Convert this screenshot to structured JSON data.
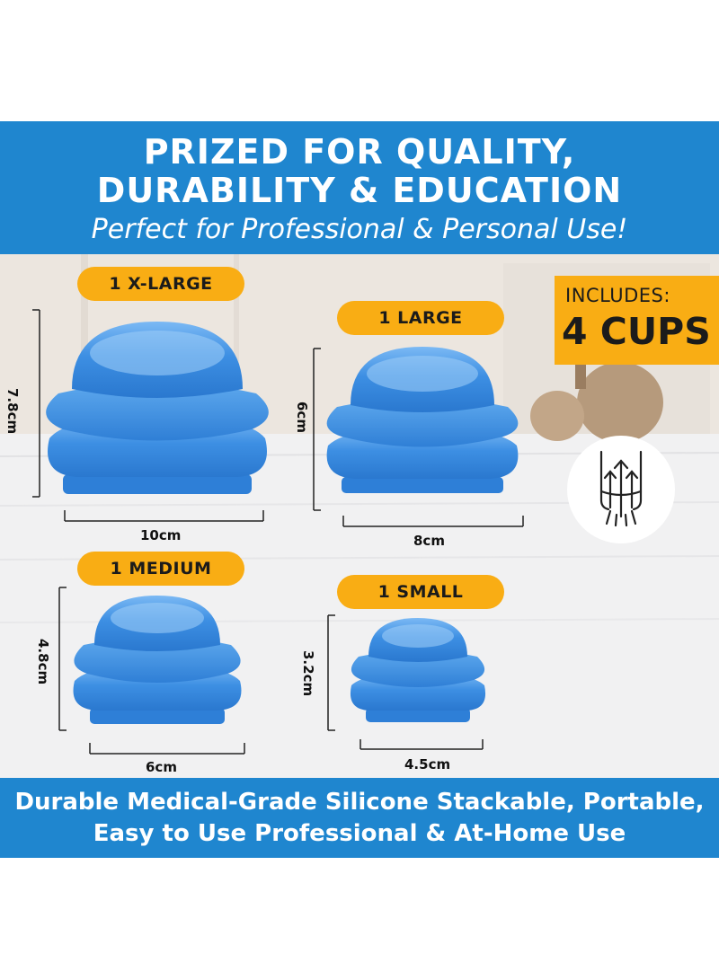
{
  "header": {
    "line1": "PRIZED FOR QUALITY,",
    "line2": "DURABILITY & EDUCATION",
    "subtitle": "Perfect for Professional & Personal Use!"
  },
  "cups": [
    {
      "label": "1 X-LARGE",
      "height": "7.8cm",
      "width": "10cm"
    },
    {
      "label": "1 LARGE",
      "height": "6cm",
      "width": "8cm"
    },
    {
      "label": "1 MEDIUM",
      "height": "4.8cm",
      "width": "6cm"
    },
    {
      "label": "1 SMALL",
      "height": "3.2cm",
      "width": "4.5cm"
    }
  ],
  "includes": {
    "label": "INCLUDES:",
    "count": "4 CUPS"
  },
  "footer": {
    "line1": "Durable Medical-Grade Silicone Stackable, Portable,",
    "line2": "Easy to Use Professional & At-Home Use"
  },
  "colors": {
    "banner_blue": "#1f86cf",
    "label_orange": "#f9ad14",
    "cup_blue": "#3d8fe3"
  },
  "icons": [
    "stack-cups-icon"
  ]
}
